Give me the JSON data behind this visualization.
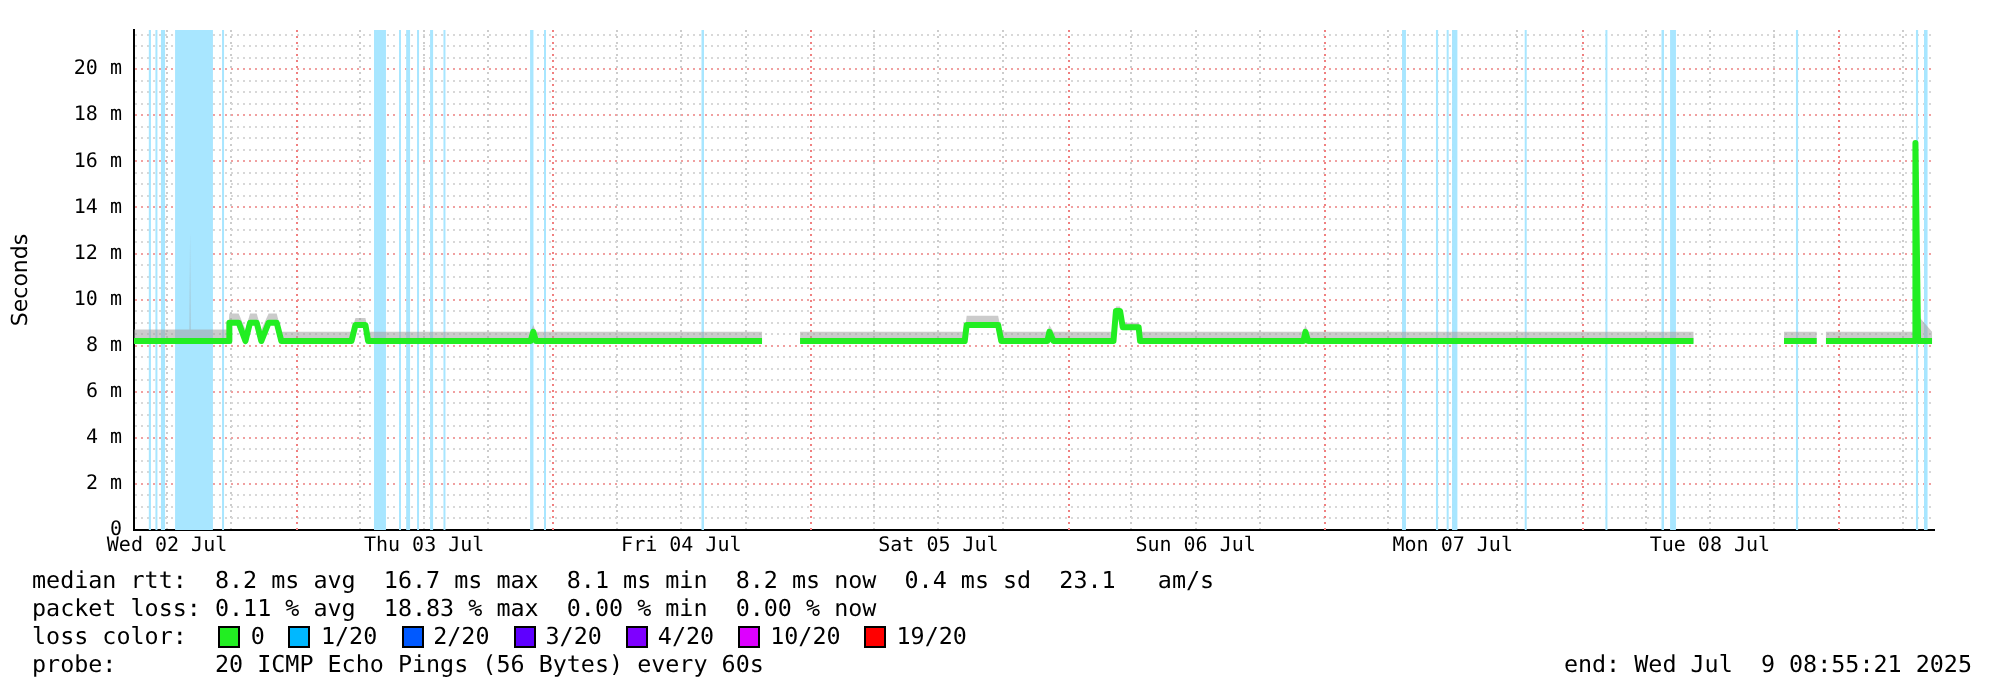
{
  "chart_data": {
    "type": "line",
    "ylabel": "Seconds",
    "legend_title": "loss color:",
    "legend": "bottom",
    "grid": true,
    "line_style": "solid",
    "marker": "none",
    "xlim": [
      "2025-07-02T08:55",
      "2025-07-09T08:55"
    ],
    "ylim": [
      0,
      21.7
    ],
    "xticks": [
      {
        "value": "2025-07-02T12:00",
        "label": "Wed 02 Jul"
      },
      {
        "value": "2025-07-02T18:00",
        "label": null
      },
      {
        "value": "2025-07-03T06:00",
        "label": null
      },
      {
        "value": "2025-07-03T12:00",
        "label": "Thu 03 Jul"
      },
      {
        "value": "2025-07-03T18:00",
        "label": null
      },
      {
        "value": "2025-07-04T06:00",
        "label": null
      },
      {
        "value": "2025-07-04T12:00",
        "label": "Fri 04 Jul"
      },
      {
        "value": "2025-07-04T18:00",
        "label": null
      },
      {
        "value": "2025-07-05T06:00",
        "label": null
      },
      {
        "value": "2025-07-05T12:00",
        "label": "Sat 05 Jul"
      },
      {
        "value": "2025-07-05T18:00",
        "label": null
      },
      {
        "value": "2025-07-06T06:00",
        "label": null
      },
      {
        "value": "2025-07-06T12:00",
        "label": "Sun 06 Jul"
      },
      {
        "value": "2025-07-06T18:00",
        "label": null
      },
      {
        "value": "2025-07-07T06:00",
        "label": null
      },
      {
        "value": "2025-07-07T12:00",
        "label": "Mon 07 Jul"
      },
      {
        "value": "2025-07-07T18:00",
        "label": null
      },
      {
        "value": "2025-07-08T06:00",
        "label": null
      },
      {
        "value": "2025-07-08T12:00",
        "label": "Tue 08 Jul"
      },
      {
        "value": "2025-07-08T18:00",
        "label": null
      },
      {
        "value": "2025-07-09T06:00",
        "label": null
      }
    ],
    "yticks": [
      {
        "value": 0,
        "label": "0"
      },
      {
        "value": 0.5,
        "label": null
      },
      {
        "value": 1,
        "label": null
      },
      {
        "value": 1.5,
        "label": null
      },
      {
        "value": 2,
        "label": "2 m"
      },
      {
        "value": 2.5,
        "label": null
      },
      {
        "value": 3,
        "label": null
      },
      {
        "value": 3.5,
        "label": null
      },
      {
        "value": 4,
        "label": "4 m"
      },
      {
        "value": 4.5,
        "label": null
      },
      {
        "value": 5,
        "label": null
      },
      {
        "value": 5.5,
        "label": null
      },
      {
        "value": 6,
        "label": "6 m"
      },
      {
        "value": 6.5,
        "label": null
      },
      {
        "value": 7,
        "label": null
      },
      {
        "value": 7.5,
        "label": null
      },
      {
        "value": 8,
        "label": "8 m"
      },
      {
        "value": 8.5,
        "label": null
      },
      {
        "value": 9,
        "label": null
      },
      {
        "value": 9.5,
        "label": null
      },
      {
        "value": 10,
        "label": "10 m"
      },
      {
        "value": 10.5,
        "label": null
      },
      {
        "value": 11,
        "label": null
      },
      {
        "value": 11.5,
        "label": null
      },
      {
        "value": 12,
        "label": "12 m"
      },
      {
        "value": 12.5,
        "label": null
      },
      {
        "value": 13,
        "label": null
      },
      {
        "value": 13.5,
        "label": null
      },
      {
        "value": 14,
        "label": "14 m"
      },
      {
        "value": 14.5,
        "label": null
      },
      {
        "value": 15,
        "label": null
      },
      {
        "value": 15.5,
        "label": null
      },
      {
        "value": 16,
        "label": "16 m"
      },
      {
        "value": 16.5,
        "label": null
      },
      {
        "value": 17,
        "label": null
      },
      {
        "value": 17.5,
        "label": null
      },
      {
        "value": 18,
        "label": "18 m"
      },
      {
        "value": 18.5,
        "label": null
      },
      {
        "value": 19,
        "label": null
      },
      {
        "value": 19.5,
        "label": null
      },
      {
        "value": 20,
        "label": "20 m"
      },
      {
        "value": 20.5,
        "label": null
      },
      {
        "value": 21,
        "label": null
      },
      {
        "value": 21.5,
        "label": null
      }
    ],
    "series": [
      {
        "name": "0",
        "color": "#22ee22",
        "x": [
          "2025-07-02T08:55",
          "2025-07-02T14:06",
          "2025-07-02T14:09",
          "2025-07-02T14:12",
          "2025-07-02T17:42",
          "2025-07-02T17:49",
          "2025-07-02T18:41",
          "2025-07-02T19:19",
          "2025-07-02T19:45",
          "2025-07-02T20:22",
          "2025-07-02T20:48",
          "2025-07-02T21:29",
          "2025-07-02T22:14",
          "2025-07-02T22:40",
          "2025-07-03T05:13",
          "2025-07-03T05:35",
          "2025-07-03T06:31",
          "2025-07-03T06:46",
          "2025-07-03T21:56",
          "2025-07-03T22:11",
          "2025-07-03T22:26",
          "2025-07-04T19:32",
          "2025-07-04T21:18",
          "2025-07-04T23:05",
          "2025-07-05T14:27",
          "2025-07-05T14:38",
          "2025-07-05T17:34",
          "2025-07-05T17:52",
          "2025-07-05T22:10",
          "2025-07-05T22:21",
          "2025-07-05T22:44",
          "2025-07-06T04:20",
          "2025-07-06T04:34",
          "2025-07-06T04:57",
          "2025-07-06T05:12",
          "2025-07-06T06:41",
          "2025-07-06T06:49",
          "2025-07-06T22:04",
          "2025-07-06T22:15",
          "2025-07-06T22:30",
          "2025-07-08T10:28",
          "2025-07-08T14:42",
          "2025-07-08T18:55",
          "2025-07-08T21:58",
          "2025-07-08T22:24",
          "2025-07-08T22:50",
          "2025-07-09T07:07",
          "2025-07-09T07:11",
          "2025-07-09T07:26",
          "2025-07-09T08:44"
        ],
        "values": [
          8.2,
          8.2,
          8.2,
          8.2,
          8.2,
          9.0,
          9.0,
          8.2,
          9.0,
          9.0,
          8.2,
          9.0,
          9.0,
          8.2,
          8.2,
          8.9,
          8.9,
          8.2,
          8.2,
          8.6,
          8.2,
          8.2,
          null,
          8.2,
          8.2,
          8.9,
          8.9,
          8.2,
          8.2,
          8.6,
          8.2,
          8.2,
          9.5,
          9.5,
          8.8,
          8.8,
          8.2,
          8.2,
          8.6,
          8.2,
          8.2,
          null,
          8.2,
          8.2,
          null,
          8.2,
          8.2,
          16.8,
          8.2,
          8.2
        ],
        "lower": [
          8.1,
          8.1,
          8.1,
          8.1,
          8.1,
          8.9,
          8.9,
          8.1,
          8.9,
          8.9,
          8.1,
          8.9,
          8.9,
          8.1,
          8.1,
          8.8,
          8.8,
          8.1,
          8.1,
          8.5,
          8.1,
          8.1,
          null,
          8.1,
          8.1,
          8.8,
          8.8,
          8.1,
          8.1,
          8.5,
          8.1,
          8.1,
          9.4,
          9.4,
          8.7,
          8.7,
          8.1,
          8.1,
          8.5,
          8.1,
          8.1,
          null,
          8.1,
          8.1,
          null,
          8.1,
          8.1,
          8.2,
          8.1,
          8.1
        ],
        "upper": [
          8.7,
          8.7,
          12.9,
          8.7,
          8.7,
          9.4,
          9.4,
          8.7,
          9.4,
          9.4,
          8.7,
          9.4,
          9.4,
          8.6,
          8.6,
          9.2,
          9.2,
          8.6,
          8.6,
          8.9,
          8.6,
          8.6,
          null,
          8.6,
          8.6,
          9.3,
          9.3,
          8.6,
          8.6,
          8.9,
          8.6,
          8.6,
          9.7,
          9.7,
          9.0,
          9.0,
          8.6,
          8.6,
          8.9,
          8.6,
          8.6,
          null,
          8.6,
          8.6,
          null,
          8.6,
          8.6,
          16.8,
          9.3,
          8.6
        ]
      },
      {
        "name": "1/20",
        "color": "#00b8ff"
      },
      {
        "name": "2/20",
        "color": "#0059ff"
      },
      {
        "name": "3/20",
        "color": "#5e00ff"
      },
      {
        "name": "4/20",
        "color": "#7e00ff"
      },
      {
        "name": "10/20",
        "color": "#dd00ff"
      },
      {
        "name": "19/20",
        "color": "#ff0000"
      }
    ],
    "bands": [
      {
        "axis": "x",
        "from": "2025-07-02T10:18",
        "to": "2025-07-02T10:30",
        "label": null,
        "color": "#a8e6ff"
      },
      {
        "axis": "x",
        "from": "2025-07-02T10:55",
        "to": "2025-07-02T11:06",
        "label": null,
        "color": "#a8e6ff"
      },
      {
        "axis": "x",
        "from": "2025-07-02T11:26",
        "to": "2025-07-02T11:49",
        "label": null,
        "color": "#a8e6ff"
      },
      {
        "axis": "x",
        "from": "2025-07-02T12:45",
        "to": "2025-07-02T16:17",
        "label": null,
        "color": "#a8e6ff"
      },
      {
        "axis": "x",
        "from": "2025-07-02T17:08",
        "to": "2025-07-02T17:19",
        "label": null,
        "color": "#a8e6ff"
      },
      {
        "axis": "x",
        "from": "2025-07-03T07:19",
        "to": "2025-07-03T08:26",
        "label": null,
        "color": "#a8e6ff"
      },
      {
        "axis": "x",
        "from": "2025-07-03T09:39",
        "to": "2025-07-03T09:50",
        "label": null,
        "color": "#a8e6ff"
      },
      {
        "axis": "x",
        "from": "2025-07-03T10:19",
        "to": "2025-07-03T10:41",
        "label": null,
        "color": "#a8e6ff"
      },
      {
        "axis": "x",
        "from": "2025-07-03T11:20",
        "to": "2025-07-03T11:31",
        "label": null,
        "color": "#a8e6ff"
      },
      {
        "axis": "x",
        "from": "2025-07-03T12:33",
        "to": "2025-07-03T12:50",
        "label": null,
        "color": "#a8e6ff"
      },
      {
        "axis": "x",
        "from": "2025-07-03T13:48",
        "to": "2025-07-03T13:59",
        "label": null,
        "color": "#a8e6ff"
      },
      {
        "axis": "x",
        "from": "2025-07-03T21:53",
        "to": "2025-07-03T22:12",
        "label": null,
        "color": "#a8e6ff"
      },
      {
        "axis": "x",
        "from": "2025-07-03T23:11",
        "to": "2025-07-03T23:22",
        "label": null,
        "color": "#a8e6ff"
      },
      {
        "axis": "x",
        "from": "2025-07-04T13:53",
        "to": "2025-07-04T14:07",
        "label": null,
        "color": "#a8e6ff"
      },
      {
        "axis": "x",
        "from": "2025-07-07T07:16",
        "to": "2025-07-07T07:38",
        "label": null,
        "color": "#a8e6ff"
      },
      {
        "axis": "x",
        "from": "2025-07-07T10:26",
        "to": "2025-07-07T10:38",
        "label": null,
        "color": "#a8e6ff"
      },
      {
        "axis": "x",
        "from": "2025-07-07T11:26",
        "to": "2025-07-07T11:37",
        "label": null,
        "color": "#a8e6ff"
      },
      {
        "axis": "x",
        "from": "2025-07-07T11:56",
        "to": "2025-07-07T12:26",
        "label": null,
        "color": "#a8e6ff"
      },
      {
        "axis": "x",
        "from": "2025-07-07T18:43",
        "to": "2025-07-07T18:50",
        "label": null,
        "color": "#a8e6ff"
      },
      {
        "axis": "x",
        "from": "2025-07-08T02:15",
        "to": "2025-07-08T02:26",
        "label": null,
        "color": "#a8e6ff"
      },
      {
        "axis": "x",
        "from": "2025-07-08T07:29",
        "to": "2025-07-08T07:43",
        "label": null,
        "color": "#a8e6ff"
      },
      {
        "axis": "x",
        "from": "2025-07-08T08:17",
        "to": "2025-07-08T08:50",
        "label": null,
        "color": "#a8e6ff"
      },
      {
        "axis": "x",
        "from": "2025-07-08T20:02",
        "to": "2025-07-08T20:14",
        "label": null,
        "color": "#a8e6ff"
      },
      {
        "axis": "x",
        "from": "2025-07-09T07:14",
        "to": "2025-07-09T07:26",
        "label": null,
        "color": "#a8e6ff"
      },
      {
        "axis": "x",
        "from": "2025-07-09T07:59",
        "to": "2025-07-09T08:19",
        "label": null,
        "color": "#a8e6ff"
      }
    ],
    "ref_lines": [
      {
        "axis": "x",
        "value": "2025-07-03T00:00",
        "label": null,
        "color": "#f08080",
        "line_style": "dotted"
      },
      {
        "axis": "x",
        "value": "2025-07-04T00:00",
        "label": null,
        "color": "#f08080",
        "line_style": "dotted"
      },
      {
        "axis": "x",
        "value": "2025-07-05T00:00",
        "label": null,
        "color": "#f08080",
        "line_style": "dotted"
      },
      {
        "axis": "x",
        "value": "2025-07-06T00:00",
        "label": null,
        "color": "#f08080",
        "line_style": "dotted"
      },
      {
        "axis": "x",
        "value": "2025-07-07T00:00",
        "label": null,
        "color": "#f08080",
        "line_style": "dotted"
      },
      {
        "axis": "x",
        "value": "2025-07-08T00:00",
        "label": null,
        "color": "#f08080",
        "line_style": "dotted"
      },
      {
        "axis": "x",
        "value": "2025-07-09T00:00",
        "label": null,
        "color": "#f08080",
        "line_style": "dotted"
      }
    ],
    "annotations": [
      "median rtt:  8.2 ms avg  16.7 ms max  8.1 ms min  8.2 ms now  0.4 ms sd  23.1   am/s",
      "packet loss: 0.11 % avg  18.83 % max  0.00 % min  0.00 % now",
      "probe:       20 ICMP Echo Pings (56 Bytes) every 60s",
      "end: Wed Jul  9 08:55:21 2025"
    ]
  }
}
